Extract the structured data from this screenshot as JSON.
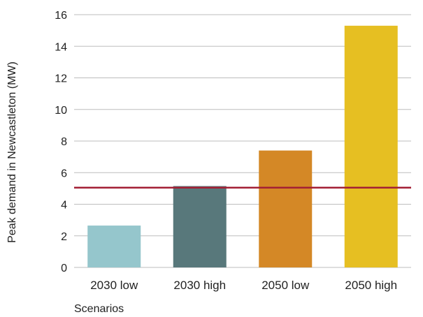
{
  "chart_data": {
    "type": "bar",
    "title": "",
    "xlabel": "Scenarios",
    "ylabel": "Peak demand in Newcastleton (MW)",
    "categories": [
      "2030 low",
      "2030 high",
      "2050 low",
      "2050 high"
    ],
    "values": [
      2.65,
      5.15,
      7.4,
      15.3
    ],
    "colors": [
      "#95c6cc",
      "#58787b",
      "#d48826",
      "#e6bf22"
    ],
    "ylim": [
      0,
      16
    ],
    "yticks": [
      0,
      2,
      4,
      6,
      8,
      10,
      12,
      14,
      16
    ],
    "grid": true,
    "reference_line": {
      "value": 5.05,
      "color": "#a31f34"
    }
  }
}
